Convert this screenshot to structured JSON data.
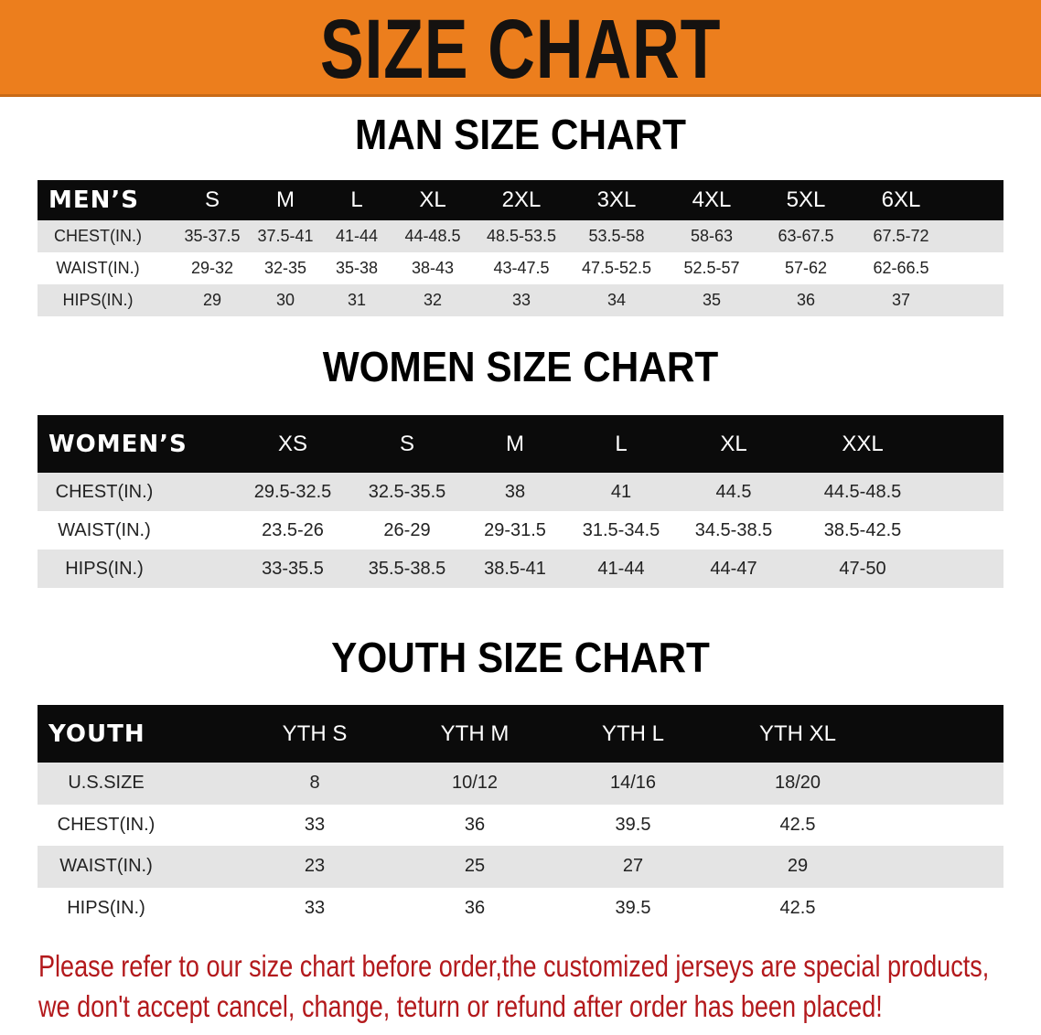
{
  "banner_title": "SIZE CHART",
  "men": {
    "title": "MAN SIZE CHART",
    "header": [
      "MEN’S",
      "S",
      "M",
      "L",
      "XL",
      "2XL",
      "3XL",
      "4XL",
      "5XL",
      "6XL"
    ],
    "rows": [
      [
        "CHEST(IN.)",
        "35-37.5",
        "37.5-41",
        "41-44",
        "44-48.5",
        "48.5-53.5",
        "53.5-58",
        "58-63",
        "63-67.5",
        "67.5-72"
      ],
      [
        "WAIST(IN.)",
        "29-32",
        "32-35",
        "35-38",
        "38-43",
        "43-47.5",
        "47.5-52.5",
        "52.5-57",
        "57-62",
        "62-66.5"
      ],
      [
        "HIPS(IN.)",
        "29",
        "30",
        "31",
        "32",
        "33",
        "34",
        "35",
        "36",
        "37"
      ]
    ]
  },
  "women": {
    "title": "WOMEN SIZE CHART",
    "header": [
      "WOMEN’S",
      "XS",
      "S",
      "M",
      "L",
      "XL",
      "XXL"
    ],
    "rows": [
      [
        "CHEST(IN.)",
        "29.5-32.5",
        "32.5-35.5",
        "38",
        "41",
        "44.5",
        "44.5-48.5"
      ],
      [
        "WAIST(IN.)",
        "23.5-26",
        "26-29",
        "29-31.5",
        "31.5-34.5",
        "34.5-38.5",
        "38.5-42.5"
      ],
      [
        "HIPS(IN.)",
        "33-35.5",
        "35.5-38.5",
        "38.5-41",
        "41-44",
        "44-47",
        "47-50"
      ]
    ]
  },
  "youth": {
    "title": "YOUTH SIZE CHART",
    "header": [
      "YOUTH",
      "YTH S",
      "YTH M",
      "YTH L",
      "YTH XL"
    ],
    "rows": [
      [
        "U.S.SIZE",
        "8",
        "10/12",
        "14/16",
        "18/20"
      ],
      [
        "CHEST(IN.)",
        "33",
        "36",
        "39.5",
        "42.5"
      ],
      [
        "WAIST(IN.)",
        "23",
        "25",
        "27",
        "29"
      ],
      [
        "HIPS(IN.)",
        "33",
        "36",
        "39.5",
        "42.5"
      ]
    ]
  },
  "notice": {
    "line1": "Please refer to our size chart before order,the customized jerseys are special products,",
    "line2": "we don't accept cancel, change, teturn or refund after order has been placed!"
  },
  "colors": {
    "banner": "#ec7e1d",
    "header_row": "#0b0b0b",
    "notice": "#b3191c"
  }
}
